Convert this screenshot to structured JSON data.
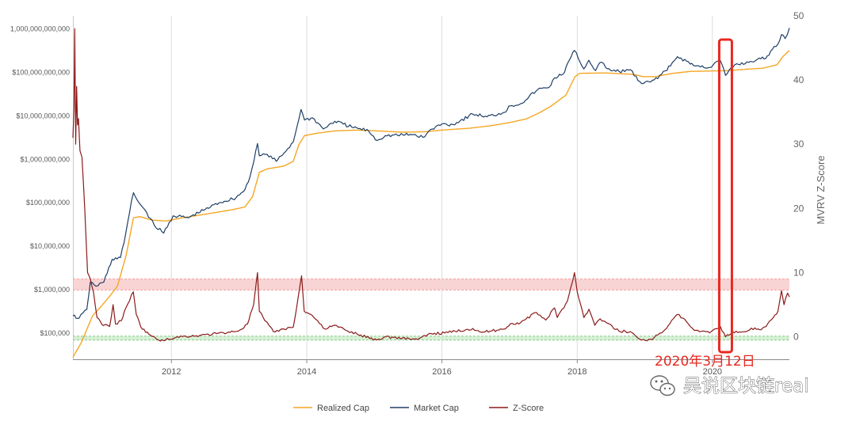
{
  "chart_data": {
    "type": "line",
    "x_range": [
      "2010-07-18",
      "2021-02-20"
    ],
    "x_ticks": [
      "2012",
      "2014",
      "2016",
      "2018",
      "2020"
    ],
    "y_left": {
      "scale": "log",
      "range": [
        25000,
        2000000000000
      ],
      "tick_values": [
        100000,
        1000000,
        10000000,
        100000000,
        1000000000,
        10000000000,
        100000000000,
        1000000000000
      ],
      "tick_labels": [
        "$100,000",
        "$1,000,000",
        "$10,000,000",
        "$100,000,000",
        "$1,000,000,000",
        "$10,000,000,000",
        "$100,000,000,000",
        "1,000,000,000,000"
      ]
    },
    "y_right": {
      "label": "MVRV Z-Score",
      "range": [
        -3.5,
        50
      ],
      "tick_values": [
        0,
        10,
        20,
        30,
        40,
        50
      ]
    },
    "bands": [
      {
        "axis": "right",
        "from": 7.3,
        "to": 9,
        "color": "#f9d4d4",
        "edge": "#f08080"
      },
      {
        "axis": "right",
        "from": -0.5,
        "to": 0.1,
        "color": "#d6f0d6",
        "edge": "#7cc47c"
      }
    ],
    "series": [
      {
        "name": "Realized Cap",
        "axis": "left",
        "color": "#f5a623",
        "points": [
          [
            "2010-07-18",
            28000
          ],
          [
            "2010-09-01",
            60000
          ],
          [
            "2010-11-01",
            250000
          ],
          [
            "2010-12-15",
            400000
          ],
          [
            "2011-02-01",
            700000
          ],
          [
            "2011-03-15",
            1200000
          ],
          [
            "2011-05-01",
            6000000
          ],
          [
            "2011-06-10",
            45000000
          ],
          [
            "2011-07-15",
            48000000
          ],
          [
            "2011-09-15",
            40000000
          ],
          [
            "2011-12-01",
            38000000
          ],
          [
            "2012-03-01",
            45000000
          ],
          [
            "2012-06-01",
            52000000
          ],
          [
            "2012-09-01",
            60000000
          ],
          [
            "2012-12-01",
            70000000
          ],
          [
            "2013-02-01",
            80000000
          ],
          [
            "2013-03-15",
            140000000
          ],
          [
            "2013-04-20",
            500000000
          ],
          [
            "2013-06-01",
            600000000
          ],
          [
            "2013-09-01",
            700000000
          ],
          [
            "2013-10-20",
            900000000
          ],
          [
            "2013-11-20",
            2200000000
          ],
          [
            "2013-12-20",
            3500000000
          ],
          [
            "2014-03-01",
            4000000000
          ],
          [
            "2014-06-01",
            4500000000
          ],
          [
            "2014-10-01",
            4700000000
          ],
          [
            "2015-01-15",
            4500000000
          ],
          [
            "2015-06-01",
            4200000000
          ],
          [
            "2015-10-01",
            4300000000
          ],
          [
            "2016-01-01",
            4700000000
          ],
          [
            "2016-06-01",
            5200000000
          ],
          [
            "2016-10-01",
            6000000000
          ],
          [
            "2017-01-01",
            7000000000
          ],
          [
            "2017-04-01",
            8500000000
          ],
          [
            "2017-06-15",
            12000000000
          ],
          [
            "2017-08-15",
            17000000000
          ],
          [
            "2017-11-01",
            30000000000
          ],
          [
            "2017-12-20",
            80000000000
          ],
          [
            "2018-01-15",
            95000000000
          ],
          [
            "2018-06-01",
            97000000000
          ],
          [
            "2018-11-01",
            90000000000
          ],
          [
            "2018-12-20",
            80000000000
          ],
          [
            "2019-03-01",
            80000000000
          ],
          [
            "2019-06-01",
            95000000000
          ],
          [
            "2019-09-01",
            105000000000
          ],
          [
            "2020-01-01",
            108000000000
          ],
          [
            "2020-03-12",
            109000000000
          ],
          [
            "2020-07-01",
            118000000000
          ],
          [
            "2020-10-01",
            125000000000
          ],
          [
            "2020-12-15",
            150000000000
          ],
          [
            "2021-01-15",
            230000000000
          ],
          [
            "2021-02-20",
            320000000000
          ]
        ]
      },
      {
        "name": "Market Cap",
        "axis": "left",
        "color": "#1f3f66",
        "points": [
          [
            "2010-07-18",
            250000
          ],
          [
            "2010-08-20",
            220000
          ],
          [
            "2010-10-01",
            350000
          ],
          [
            "2010-10-20",
            1500000
          ],
          [
            "2010-11-20",
            1200000
          ],
          [
            "2011-01-01",
            1500000
          ],
          [
            "2011-02-15",
            5000000
          ],
          [
            "2011-04-01",
            5500000
          ],
          [
            "2011-04-20",
            12000000
          ],
          [
            "2011-05-20",
            60000000
          ],
          [
            "2011-06-10",
            170000000
          ],
          [
            "2011-07-10",
            100000000
          ],
          [
            "2011-08-20",
            60000000
          ],
          [
            "2011-10-01",
            30000000
          ],
          [
            "2011-11-20",
            20000000
          ],
          [
            "2012-01-10",
            50000000
          ],
          [
            "2012-04-01",
            45000000
          ],
          [
            "2012-07-01",
            70000000
          ],
          [
            "2012-09-15",
            100000000
          ],
          [
            "2012-12-15",
            130000000
          ],
          [
            "2013-02-01",
            200000000
          ],
          [
            "2013-03-01",
            400000000
          ],
          [
            "2013-04-10",
            2300000000
          ],
          [
            "2013-04-20",
            1200000000
          ],
          [
            "2013-06-01",
            1300000000
          ],
          [
            "2013-07-20",
            900000000
          ],
          [
            "2013-09-01",
            1400000000
          ],
          [
            "2013-10-20",
            2500000000
          ],
          [
            "2013-12-01",
            14000000000
          ],
          [
            "2013-12-20",
            8000000000
          ],
          [
            "2014-02-01",
            9000000000
          ],
          [
            "2014-04-01",
            5000000000
          ],
          [
            "2014-06-01",
            7500000000
          ],
          [
            "2014-09-01",
            5500000000
          ],
          [
            "2014-12-01",
            4500000000
          ],
          [
            "2015-01-15",
            2700000000
          ],
          [
            "2015-03-01",
            3500000000
          ],
          [
            "2015-08-01",
            3700000000
          ],
          [
            "2015-09-20",
            3200000000
          ],
          [
            "2015-11-10",
            5000000000
          ],
          [
            "2016-01-01",
            6500000000
          ],
          [
            "2016-03-01",
            6300000000
          ],
          [
            "2016-06-15",
            11000000000
          ],
          [
            "2016-09-01",
            9500000000
          ],
          [
            "2016-12-01",
            12000000000
          ],
          [
            "2017-01-05",
            17000000000
          ],
          [
            "2017-03-01",
            19000000000
          ],
          [
            "2017-06-01",
            40000000000
          ],
          [
            "2017-08-01",
            45000000000
          ],
          [
            "2017-09-01",
            75000000000
          ],
          [
            "2017-10-15",
            90000000000
          ],
          [
            "2017-12-17",
            320000000000
          ],
          [
            "2018-02-06",
            120000000000
          ],
          [
            "2018-03-05",
            190000000000
          ],
          [
            "2018-04-10",
            110000000000
          ],
          [
            "2018-05-05",
            170000000000
          ],
          [
            "2018-07-01",
            110000000000
          ],
          [
            "2018-08-15",
            105000000000
          ],
          [
            "2018-10-15",
            115000000000
          ],
          [
            "2018-11-25",
            65000000000
          ],
          [
            "2018-12-15",
            55000000000
          ],
          [
            "2019-02-01",
            60000000000
          ],
          [
            "2019-04-01",
            90000000000
          ],
          [
            "2019-05-20",
            140000000000
          ],
          [
            "2019-06-26",
            230000000000
          ],
          [
            "2019-08-15",
            180000000000
          ],
          [
            "2019-09-30",
            140000000000
          ],
          [
            "2019-12-15",
            130000000000
          ],
          [
            "2020-02-12",
            190000000000
          ],
          [
            "2020-03-12",
            85000000000
          ],
          [
            "2020-05-01",
            150000000000
          ],
          [
            "2020-07-15",
            170000000000
          ],
          [
            "2020-09-01",
            200000000000
          ],
          [
            "2020-10-15",
            210000000000
          ],
          [
            "2020-11-20",
            340000000000
          ],
          [
            "2020-12-20",
            450000000000
          ],
          [
            "2021-01-08",
            740000000000
          ],
          [
            "2021-01-28",
            600000000000
          ],
          [
            "2021-02-20",
            1050000000000
          ]
        ]
      },
      {
        "name": "Z-Score",
        "axis": "right",
        "color": "#8b1a1a",
        "points": [
          [
            "2010-07-18",
            31
          ],
          [
            "2010-07-24",
            36
          ],
          [
            "2010-07-28",
            48
          ],
          [
            "2010-08-02",
            30
          ],
          [
            "2010-08-07",
            39
          ],
          [
            "2010-08-12",
            33
          ],
          [
            "2010-08-17",
            34
          ],
          [
            "2010-08-25",
            29
          ],
          [
            "2010-09-05",
            28
          ],
          [
            "2010-09-20",
            20
          ],
          [
            "2010-10-05",
            10
          ],
          [
            "2010-10-20",
            9
          ],
          [
            "2010-11-06",
            7
          ],
          [
            "2010-11-25",
            3
          ],
          [
            "2010-12-20",
            2
          ],
          [
            "2011-02-01",
            1.6
          ],
          [
            "2011-02-20",
            5
          ],
          [
            "2011-03-05",
            2
          ],
          [
            "2011-04-05",
            2.5
          ],
          [
            "2011-04-30",
            4.5
          ],
          [
            "2011-06-09",
            7
          ],
          [
            "2011-06-25",
            3.5
          ],
          [
            "2011-07-20",
            1.5
          ],
          [
            "2011-09-01",
            0.4
          ],
          [
            "2011-10-15",
            -0.4
          ],
          [
            "2011-11-20",
            -0.6
          ],
          [
            "2012-02-01",
            0
          ],
          [
            "2012-06-01",
            0.2
          ],
          [
            "2012-09-01",
            0.5
          ],
          [
            "2012-12-01",
            0.8
          ],
          [
            "2013-01-15",
            1.2
          ],
          [
            "2013-02-15",
            2
          ],
          [
            "2013-03-20",
            5
          ],
          [
            "2013-04-10",
            10
          ],
          [
            "2013-04-20",
            4
          ],
          [
            "2013-05-20",
            2.5
          ],
          [
            "2013-07-05",
            0.8
          ],
          [
            "2013-09-01",
            1.2
          ],
          [
            "2013-10-20",
            1.5
          ],
          [
            "2013-11-15",
            6
          ],
          [
            "2013-12-04",
            9.5
          ],
          [
            "2013-12-18",
            4
          ],
          [
            "2014-01-20",
            3.5
          ],
          [
            "2014-03-01",
            2.5
          ],
          [
            "2014-04-10",
            1.2
          ],
          [
            "2014-06-01",
            1.8
          ],
          [
            "2014-08-01",
            1
          ],
          [
            "2014-10-01",
            0.4
          ],
          [
            "2015-01-14",
            -0.5
          ],
          [
            "2015-03-01",
            0
          ],
          [
            "2015-06-01",
            -0.2
          ],
          [
            "2015-08-24",
            -0.4
          ],
          [
            "2015-11-04",
            0.5
          ],
          [
            "2016-01-15",
            0.6
          ],
          [
            "2016-06-16",
            1.3
          ],
          [
            "2016-08-02",
            0.7
          ],
          [
            "2016-12-01",
            1.2
          ],
          [
            "2017-01-04",
            2
          ],
          [
            "2017-03-01",
            2.2
          ],
          [
            "2017-05-25",
            3.8
          ],
          [
            "2017-07-15",
            2.6
          ],
          [
            "2017-09-01",
            4.5
          ],
          [
            "2017-09-15",
            3
          ],
          [
            "2017-11-08",
            5.5
          ],
          [
            "2017-12-17",
            10
          ],
          [
            "2018-01-01",
            7
          ],
          [
            "2018-02-06",
            3
          ],
          [
            "2018-03-05",
            4.3
          ],
          [
            "2018-04-06",
            1.8
          ],
          [
            "2018-05-05",
            2.8
          ],
          [
            "2018-08-14",
            0.9
          ],
          [
            "2018-10-15",
            0.8
          ],
          [
            "2018-11-25",
            -0.2
          ],
          [
            "2018-12-15",
            -0.5
          ],
          [
            "2019-02-01",
            -0.4
          ],
          [
            "2019-04-02",
            0.6
          ],
          [
            "2019-05-15",
            2
          ],
          [
            "2019-06-26",
            3.5
          ],
          [
            "2019-08-15",
            2.3
          ],
          [
            "2019-09-25",
            1
          ],
          [
            "2019-12-17",
            0.6
          ],
          [
            "2020-02-13",
            1.6
          ],
          [
            "2020-03-12",
            0
          ],
          [
            "2020-04-20",
            0.8
          ],
          [
            "2020-07-01",
            0.8
          ],
          [
            "2020-08-17",
            1.4
          ],
          [
            "2020-09-20",
            1.1
          ],
          [
            "2020-10-25",
            2
          ],
          [
            "2020-11-25",
            3
          ],
          [
            "2020-12-20",
            4
          ],
          [
            "2021-01-08",
            7.2
          ],
          [
            "2021-01-22",
            5
          ],
          [
            "2021-02-10",
            6.8
          ],
          [
            "2021-02-20",
            6.2
          ]
        ]
      }
    ],
    "highlight": {
      "date": "2020-03-12",
      "label": "2020年3月12日",
      "color": "#e8271f"
    },
    "legend": {
      "position": "bottom-center",
      "items": [
        "Realized Cap",
        "Market Cap",
        "Z-Score"
      ]
    }
  },
  "watermark": {
    "text": "吴说区块链real",
    "icon": "wechat-icon"
  }
}
